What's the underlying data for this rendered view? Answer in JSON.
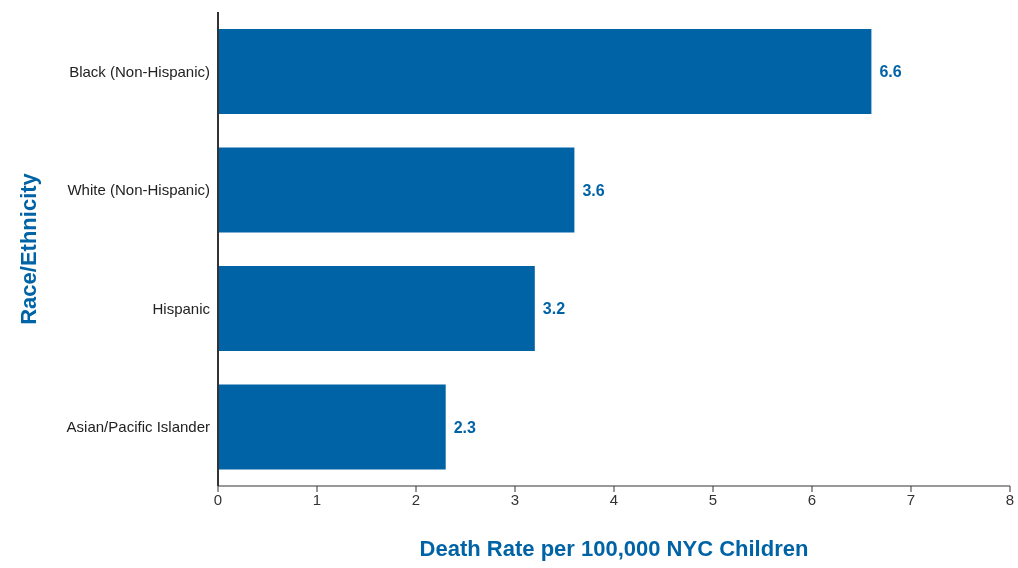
{
  "chart_data": {
    "type": "bar",
    "orientation": "horizontal",
    "xlabel": "Death Rate per 100,000 NYC Children",
    "ylabel": "Race/Ethnicity",
    "categories": [
      "Black (Non-Hispanic)",
      "White (Non-Hispanic)",
      "Hispanic",
      "Asian/Pacific Islander"
    ],
    "values": [
      6.6,
      3.6,
      3.2,
      2.3
    ],
    "color": "#0063a6",
    "data_labels": true,
    "xlim": [
      0,
      8
    ],
    "xticks": [
      0,
      1,
      2,
      3,
      4,
      5,
      6,
      7,
      8
    ]
  }
}
